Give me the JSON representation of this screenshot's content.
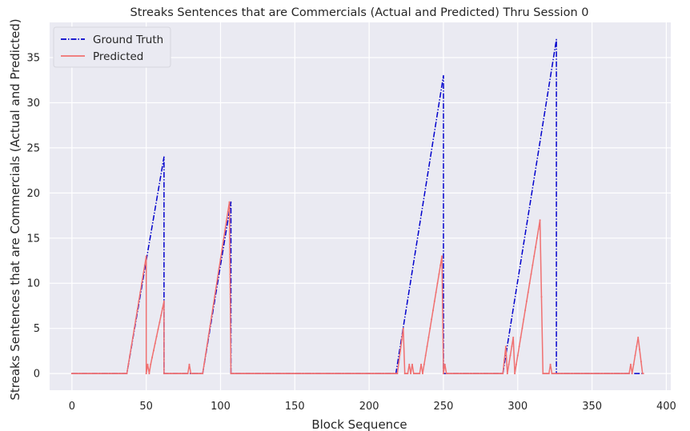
{
  "chart_data": {
    "type": "line",
    "title": "Streaks Sentences that are Commercials (Actual and Predicted) Thru Session 0",
    "xlabel": "Block Sequence",
    "ylabel": "Streaks Sentences that are Commercials (Actual and Predicted)",
    "xlim": [
      -15,
      403
    ],
    "ylim": [
      -1.85,
      38.9
    ],
    "xticks": [
      0,
      50,
      100,
      150,
      200,
      250,
      300,
      350,
      400
    ],
    "yticks": [
      0,
      5,
      10,
      15,
      20,
      25,
      30,
      35
    ],
    "grid": true,
    "legend": "top-left",
    "series": [
      {
        "name": "Ground Truth",
        "color": "#0000cc",
        "style": "dash-dot",
        "points": [
          [
            0,
            0
          ],
          [
            37,
            0
          ],
          [
            62,
            24
          ],
          [
            62,
            0
          ],
          [
            88,
            0
          ],
          [
            107,
            19
          ],
          [
            107,
            0
          ],
          [
            218,
            0
          ],
          [
            250,
            33
          ],
          [
            250,
            0
          ],
          [
            290,
            0
          ],
          [
            326,
            37
          ],
          [
            326,
            0
          ],
          [
            385,
            0
          ]
        ]
      },
      {
        "name": "Predicted",
        "color": "#f07070",
        "style": "solid-small-markers",
        "points": [
          [
            0,
            0
          ],
          [
            37,
            0
          ],
          [
            50,
            13
          ],
          [
            50,
            0
          ],
          [
            51,
            1
          ],
          [
            52,
            0
          ],
          [
            53,
            1
          ],
          [
            62,
            8
          ],
          [
            62,
            0
          ],
          [
            78,
            0
          ],
          [
            79,
            1
          ],
          [
            80,
            0
          ],
          [
            88,
            0
          ],
          [
            106,
            19
          ],
          [
            107,
            0
          ],
          [
            219,
            0
          ],
          [
            223,
            5
          ],
          [
            224,
            0
          ],
          [
            226,
            0
          ],
          [
            227,
            1
          ],
          [
            228,
            0
          ],
          [
            229,
            1
          ],
          [
            230,
            0
          ],
          [
            234,
            0
          ],
          [
            235,
            1
          ],
          [
            236,
            0
          ],
          [
            249,
            13
          ],
          [
            250,
            0
          ],
          [
            251,
            1
          ],
          [
            252,
            0
          ],
          [
            290,
            0
          ],
          [
            292,
            3
          ],
          [
            293,
            0
          ],
          [
            297,
            4
          ],
          [
            298,
            0
          ],
          [
            315,
            17
          ],
          [
            317,
            0
          ],
          [
            321,
            0
          ],
          [
            322,
            1
          ],
          [
            323,
            0
          ],
          [
            375,
            0
          ],
          [
            376,
            1
          ],
          [
            377,
            0
          ],
          [
            381,
            4
          ],
          [
            384,
            0
          ],
          [
            385,
            0
          ]
        ]
      }
    ]
  }
}
